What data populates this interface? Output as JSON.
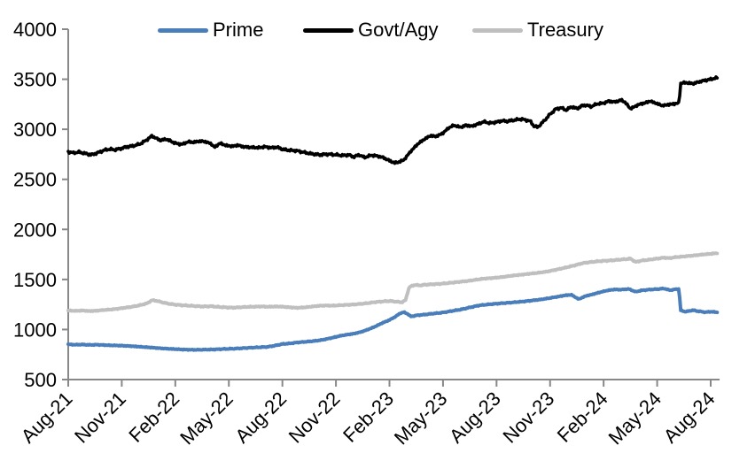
{
  "colors": {
    "background": "#ffffff",
    "axis": "#888888",
    "text": "#000000",
    "prime": "#4A7EBB",
    "govt_agy": "#000000",
    "treasury": "#BFBFBF"
  },
  "chart_data": {
    "type": "line",
    "title": "",
    "xlabel": "",
    "ylabel": "",
    "grid": false,
    "legend_position": "top",
    "x_axis": {
      "unit": "months since Aug-2021",
      "tick_labels": [
        "Aug-21",
        "Nov-21",
        "Feb-22",
        "May-22",
        "Aug-22",
        "Nov-22",
        "Feb-23",
        "May-23",
        "Aug-23",
        "Nov-23",
        "Feb-24",
        "May-24",
        "Aug-24"
      ],
      "tick_positions_months": [
        0,
        3,
        6,
        9,
        12,
        15,
        18,
        21,
        24,
        27,
        30,
        33,
        36
      ],
      "data_end_month": 36.4
    },
    "y_axis": {
      "min": 500,
      "max": 4000,
      "tick_interval": 500,
      "tick_values": [
        500,
        1000,
        1500,
        2000,
        2500,
        3000,
        3500,
        4000
      ]
    },
    "series": [
      {
        "name": "Prime",
        "color": "#4A7EBB",
        "line_width": 4,
        "noise_amplitude": 5,
        "points": [
          [
            0,
            852
          ],
          [
            0.4,
            848
          ],
          [
            0.8,
            850
          ],
          [
            1.2,
            846
          ],
          [
            1.6,
            848
          ],
          [
            2,
            845
          ],
          [
            2.4,
            842
          ],
          [
            2.8,
            840
          ],
          [
            3.2,
            837
          ],
          [
            3.6,
            833
          ],
          [
            4,
            828
          ],
          [
            4.4,
            823
          ],
          [
            4.8,
            818
          ],
          [
            5.2,
            812
          ],
          [
            5.6,
            808
          ],
          [
            6,
            804
          ],
          [
            6.4,
            800
          ],
          [
            6.8,
            798
          ],
          [
            7.2,
            797
          ],
          [
            7.6,
            799
          ],
          [
            8,
            800
          ],
          [
            8.4,
            803
          ],
          [
            8.8,
            806
          ],
          [
            9.2,
            808
          ],
          [
            9.6,
            812
          ],
          [
            10,
            816
          ],
          [
            10.4,
            820
          ],
          [
            10.8,
            823
          ],
          [
            11.2,
            827
          ],
          [
            11.6,
            840
          ],
          [
            12,
            855
          ],
          [
            12.4,
            860
          ],
          [
            12.8,
            870
          ],
          [
            13.2,
            876
          ],
          [
            13.6,
            882
          ],
          [
            14,
            890
          ],
          [
            14.4,
            902
          ],
          [
            14.8,
            918
          ],
          [
            15.2,
            935
          ],
          [
            15.6,
            948
          ],
          [
            16,
            958
          ],
          [
            16.4,
            975
          ],
          [
            16.8,
            1000
          ],
          [
            17.2,
            1030
          ],
          [
            17.6,
            1065
          ],
          [
            18,
            1095
          ],
          [
            18.3,
            1125
          ],
          [
            18.6,
            1162
          ],
          [
            18.8,
            1173
          ],
          [
            19,
            1158
          ],
          [
            19.2,
            1130
          ],
          [
            19.5,
            1141
          ],
          [
            20,
            1150
          ],
          [
            20.5,
            1160
          ],
          [
            21,
            1170
          ],
          [
            21.5,
            1185
          ],
          [
            22,
            1200
          ],
          [
            22.5,
            1220
          ],
          [
            23,
            1240
          ],
          [
            23.5,
            1250
          ],
          [
            24,
            1258
          ],
          [
            24.5,
            1265
          ],
          [
            25,
            1272
          ],
          [
            25.5,
            1280
          ],
          [
            26,
            1290
          ],
          [
            26.5,
            1300
          ],
          [
            27,
            1315
          ],
          [
            27.5,
            1330
          ],
          [
            27.9,
            1343
          ],
          [
            28.2,
            1346
          ],
          [
            28.6,
            1303
          ],
          [
            29,
            1335
          ],
          [
            29.4,
            1352
          ],
          [
            29.8,
            1372
          ],
          [
            30.2,
            1390
          ],
          [
            30.6,
            1400
          ],
          [
            31,
            1398
          ],
          [
            31.4,
            1405
          ],
          [
            31.8,
            1377
          ],
          [
            32.1,
            1390
          ],
          [
            32.5,
            1398
          ],
          [
            33,
            1403
          ],
          [
            33.4,
            1410
          ],
          [
            33.7,
            1392
          ],
          [
            34,
            1401
          ],
          [
            34.22,
            1405
          ],
          [
            34.32,
            1190
          ],
          [
            34.6,
            1178
          ],
          [
            35,
            1193
          ],
          [
            35.3,
            1183
          ],
          [
            35.7,
            1173
          ],
          [
            36,
            1178
          ],
          [
            36.4,
            1172
          ]
        ]
      },
      {
        "name": "Govt/Agy",
        "color": "#000000",
        "line_width": 3.6,
        "noise_amplitude": 13,
        "points": [
          [
            0,
            2775
          ],
          [
            0.3,
            2765
          ],
          [
            0.6,
            2772
          ],
          [
            1,
            2756
          ],
          [
            1.3,
            2745
          ],
          [
            1.6,
            2762
          ],
          [
            2,
            2790
          ],
          [
            2.3,
            2802
          ],
          [
            2.6,
            2795
          ],
          [
            3,
            2810
          ],
          [
            3.3,
            2826
          ],
          [
            3.6,
            2832
          ],
          [
            4,
            2852
          ],
          [
            4.3,
            2882
          ],
          [
            4.7,
            2935
          ],
          [
            5,
            2902
          ],
          [
            5.2,
            2890
          ],
          [
            5.5,
            2902
          ],
          [
            5.8,
            2876
          ],
          [
            6.1,
            2856
          ],
          [
            6.4,
            2850
          ],
          [
            6.7,
            2876
          ],
          [
            7,
            2870
          ],
          [
            7.4,
            2882
          ],
          [
            7.7,
            2876
          ],
          [
            8,
            2856
          ],
          [
            8.2,
            2820
          ],
          [
            8.5,
            2862
          ],
          [
            8.8,
            2840
          ],
          [
            9.2,
            2830
          ],
          [
            9.5,
            2842
          ],
          [
            9.8,
            2826
          ],
          [
            10.2,
            2820
          ],
          [
            10.7,
            2816
          ],
          [
            11,
            2826
          ],
          [
            11.4,
            2815
          ],
          [
            11.7,
            2822
          ],
          [
            12,
            2800
          ],
          [
            12.4,
            2790
          ],
          [
            12.8,
            2786
          ],
          [
            13.2,
            2770
          ],
          [
            13.6,
            2756
          ],
          [
            14.1,
            2745
          ],
          [
            14.5,
            2752
          ],
          [
            15,
            2745
          ],
          [
            15.4,
            2738
          ],
          [
            15.7,
            2746
          ],
          [
            16,
            2724
          ],
          [
            16.3,
            2746
          ],
          [
            16.6,
            2718
          ],
          [
            17,
            2742
          ],
          [
            17.4,
            2730
          ],
          [
            17.7,
            2714
          ],
          [
            18,
            2686
          ],
          [
            18.3,
            2664
          ],
          [
            18.5,
            2672
          ],
          [
            18.8,
            2692
          ],
          [
            19.2,
            2782
          ],
          [
            19.6,
            2856
          ],
          [
            20,
            2906
          ],
          [
            20.3,
            2936
          ],
          [
            20.6,
            2928
          ],
          [
            21,
            2962
          ],
          [
            21.3,
            3012
          ],
          [
            21.6,
            3040
          ],
          [
            22,
            3020
          ],
          [
            22.3,
            3042
          ],
          [
            22.6,
            3030
          ],
          [
            23,
            3056
          ],
          [
            23.3,
            3076
          ],
          [
            23.6,
            3062
          ],
          [
            24,
            3072
          ],
          [
            24.3,
            3086
          ],
          [
            24.6,
            3080
          ],
          [
            25,
            3092
          ],
          [
            25.3,
            3102
          ],
          [
            25.6,
            3096
          ],
          [
            25.9,
            3080
          ],
          [
            26.1,
            3032
          ],
          [
            26.3,
            3020
          ],
          [
            26.6,
            3072
          ],
          [
            27,
            3150
          ],
          [
            27.3,
            3200
          ],
          [
            27.6,
            3216
          ],
          [
            27.9,
            3192
          ],
          [
            28.2,
            3226
          ],
          [
            28.5,
            3206
          ],
          [
            28.8,
            3236
          ],
          [
            29,
            3242
          ],
          [
            29.3,
            3226
          ],
          [
            29.6,
            3252
          ],
          [
            30,
            3262
          ],
          [
            30.3,
            3282
          ],
          [
            30.6,
            3272
          ],
          [
            31,
            3292
          ],
          [
            31.2,
            3270
          ],
          [
            31.5,
            3206
          ],
          [
            31.8,
            3232
          ],
          [
            32,
            3250
          ],
          [
            32.3,
            3262
          ],
          [
            32.6,
            3282
          ],
          [
            33,
            3256
          ],
          [
            33.3,
            3236
          ],
          [
            33.6,
            3246
          ],
          [
            34,
            3256
          ],
          [
            34.22,
            3262
          ],
          [
            34.32,
            3460
          ],
          [
            34.6,
            3466
          ],
          [
            35,
            3456
          ],
          [
            35.3,
            3472
          ],
          [
            35.6,
            3486
          ],
          [
            36,
            3500
          ],
          [
            36.4,
            3516
          ]
        ]
      },
      {
        "name": "Treasury",
        "color": "#BFBFBF",
        "line_width": 4,
        "noise_amplitude": 6,
        "points": [
          [
            0,
            1190
          ],
          [
            0.4,
            1186
          ],
          [
            0.8,
            1190
          ],
          [
            1.2,
            1184
          ],
          [
            1.6,
            1188
          ],
          [
            2,
            1195
          ],
          [
            2.4,
            1200
          ],
          [
            2.8,
            1208
          ],
          [
            3.2,
            1218
          ],
          [
            3.6,
            1228
          ],
          [
            4,
            1242
          ],
          [
            4.4,
            1260
          ],
          [
            4.7,
            1293
          ],
          [
            5,
            1285
          ],
          [
            5.3,
            1270
          ],
          [
            5.6,
            1258
          ],
          [
            6,
            1248
          ],
          [
            6.4,
            1242
          ],
          [
            6.8,
            1238
          ],
          [
            7.2,
            1233
          ],
          [
            7.6,
            1230
          ],
          [
            8,
            1233
          ],
          [
            8.4,
            1226
          ],
          [
            8.8,
            1222
          ],
          [
            9.2,
            1218
          ],
          [
            9.6,
            1222
          ],
          [
            10,
            1226
          ],
          [
            10.4,
            1228
          ],
          [
            10.8,
            1230
          ],
          [
            11.2,
            1227
          ],
          [
            11.6,
            1230
          ],
          [
            12,
            1228
          ],
          [
            12.4,
            1222
          ],
          [
            12.8,
            1217
          ],
          [
            13.2,
            1220
          ],
          [
            13.6,
            1228
          ],
          [
            14,
            1236
          ],
          [
            14.4,
            1240
          ],
          [
            14.8,
            1238
          ],
          [
            15.2,
            1242
          ],
          [
            15.6,
            1246
          ],
          [
            16,
            1250
          ],
          [
            16.4,
            1256
          ],
          [
            16.8,
            1264
          ],
          [
            17.2,
            1274
          ],
          [
            17.6,
            1280
          ],
          [
            18,
            1285
          ],
          [
            18.4,
            1278
          ],
          [
            18.7,
            1272
          ],
          [
            18.9,
            1292
          ],
          [
            19.1,
            1422
          ],
          [
            19.4,
            1446
          ],
          [
            19.7,
            1440
          ],
          [
            20,
            1448
          ],
          [
            20.4,
            1452
          ],
          [
            20.8,
            1456
          ],
          [
            21.2,
            1462
          ],
          [
            21.6,
            1470
          ],
          [
            22,
            1478
          ],
          [
            22.4,
            1485
          ],
          [
            22.8,
            1496
          ],
          [
            23.2,
            1506
          ],
          [
            23.6,
            1512
          ],
          [
            24,
            1518
          ],
          [
            24.4,
            1526
          ],
          [
            24.8,
            1536
          ],
          [
            25.2,
            1544
          ],
          [
            25.6,
            1552
          ],
          [
            26,
            1560
          ],
          [
            26.4,
            1568
          ],
          [
            26.8,
            1578
          ],
          [
            27.2,
            1592
          ],
          [
            27.6,
            1608
          ],
          [
            28,
            1624
          ],
          [
            28.4,
            1642
          ],
          [
            28.8,
            1662
          ],
          [
            29.2,
            1672
          ],
          [
            29.6,
            1680
          ],
          [
            30,
            1686
          ],
          [
            30.4,
            1690
          ],
          [
            30.8,
            1696
          ],
          [
            31.2,
            1702
          ],
          [
            31.5,
            1708
          ],
          [
            31.8,
            1674
          ],
          [
            32.1,
            1688
          ],
          [
            32.5,
            1696
          ],
          [
            33,
            1708
          ],
          [
            33.4,
            1718
          ],
          [
            33.7,
            1712
          ],
          [
            34,
            1722
          ],
          [
            34.4,
            1728
          ],
          [
            34.8,
            1735
          ],
          [
            35.2,
            1742
          ],
          [
            35.6,
            1750
          ],
          [
            36,
            1756
          ],
          [
            36.4,
            1764
          ]
        ]
      }
    ]
  }
}
